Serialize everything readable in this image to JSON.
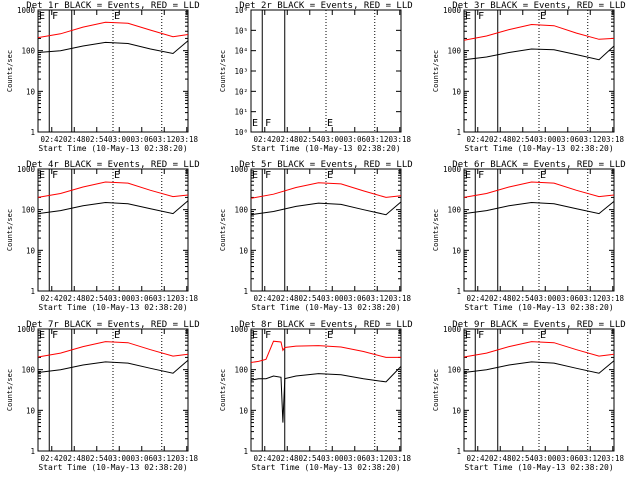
{
  "figure": {
    "background": "#ffffff",
    "event_color": "#000000",
    "lld_color": "#ff0000",
    "layout": "3x3 grid"
  },
  "chart_data": [
    {
      "type": "line",
      "title": "Det 1r BLACK = Events, RED = LLD",
      "xlabel": "Start Time (10-May-13 02:38:20)",
      "ylabel": "Counts/sec",
      "yscale": "log",
      "ylim": [
        1,
        1000
      ],
      "x_tick_labels": [
        "02:42",
        "02:48",
        "02:54",
        "03:00",
        "03:06",
        "03:12",
        "03:18"
      ],
      "y_tick_labels": [
        "1",
        "10",
        "100",
        "1000"
      ],
      "x_minutes": [
        0,
        6,
        12,
        18,
        24,
        30,
        36,
        40
      ],
      "series": [
        {
          "name": "Events",
          "color": "#000000",
          "values": [
            90,
            100,
            130,
            160,
            150,
            110,
            85,
            175
          ]
        },
        {
          "name": "LLD",
          "color": "#ff0000",
          "values": [
            210,
            260,
            380,
            500,
            470,
            320,
            220,
            250
          ]
        }
      ],
      "markers": [
        {
          "label": "E",
          "x_minute": 0
        },
        {
          "label": "F",
          "x_minute": 3.5
        },
        {
          "label": "E",
          "x_minute": 20
        }
      ],
      "vlines_solid": [
        3,
        9
      ],
      "vlines_dotted": [
        20,
        33
      ]
    },
    {
      "type": "line",
      "title": "Det 2r BLACK = Events, RED = LLD",
      "xlabel": "Start Time (10-May-13 02:38:20)",
      "ylabel": "Counts/sec",
      "yscale": "log",
      "ylim": [
        1,
        1000000
      ],
      "x_tick_labels": [
        "02:42",
        "02:48",
        "02:54",
        "03:00",
        "03:06",
        "03:12",
        "03:18"
      ],
      "y_tick_labels": [
        "10⁰",
        "10¹",
        "10²",
        "10³",
        "10⁴",
        "10⁵",
        "10⁶"
      ],
      "series": [],
      "markers": [
        {
          "label": "E",
          "x_minute": 0
        },
        {
          "label": "F",
          "x_minute": 3.5
        },
        {
          "label": "E",
          "x_minute": 20
        }
      ],
      "vlines_solid": [
        3,
        9
      ],
      "vlines_dotted": [
        20,
        33
      ]
    },
    {
      "type": "line",
      "title": "Det 3r BLACK = Events, RED = LLD",
      "xlabel": "Start Time (10-May-13 02:38:20)",
      "ylabel": "Counts/sec",
      "yscale": "log",
      "ylim": [
        1,
        1000
      ],
      "x_tick_labels": [
        "02:42",
        "02:48",
        "02:54",
        "03:00",
        "03:06",
        "03:12",
        "03:18"
      ],
      "y_tick_labels": [
        "1",
        "10",
        "100",
        "1000"
      ],
      "x_minutes": [
        0,
        6,
        12,
        18,
        24,
        30,
        36,
        40
      ],
      "series": [
        {
          "name": "Events",
          "color": "#000000",
          "values": [
            60,
            70,
            90,
            110,
            105,
            80,
            60,
            130
          ]
        },
        {
          "name": "LLD",
          "color": "#ff0000",
          "values": [
            180,
            230,
            330,
            440,
            410,
            270,
            190,
            200
          ]
        }
      ],
      "markers": [
        {
          "label": "E",
          "x_minute": 0
        },
        {
          "label": "F",
          "x_minute": 3.5
        },
        {
          "label": "E",
          "x_minute": 20
        }
      ],
      "vlines_solid": [
        3,
        9
      ],
      "vlines_dotted": [
        20,
        33
      ]
    },
    {
      "type": "line",
      "title": "Det 4r BLACK = Events, RED = LLD",
      "xlabel": "Start Time (10-May-13 02:38:20)",
      "ylabel": "Counts/sec",
      "yscale": "log",
      "ylim": [
        1,
        1000
      ],
      "x_tick_labels": [
        "02:42",
        "02:48",
        "02:54",
        "03:00",
        "03:06",
        "03:12",
        "03:18"
      ],
      "y_tick_labels": [
        "1",
        "10",
        "100",
        "1000"
      ],
      "x_minutes": [
        0,
        6,
        12,
        18,
        24,
        30,
        36,
        40
      ],
      "series": [
        {
          "name": "Events",
          "color": "#000000",
          "values": [
            80,
            95,
            125,
            150,
            140,
            105,
            80,
            165
          ]
        },
        {
          "name": "LLD",
          "color": "#ff0000",
          "values": [
            200,
            250,
            360,
            480,
            450,
            300,
            210,
            230
          ]
        }
      ],
      "markers": [
        {
          "label": "E",
          "x_minute": 0
        },
        {
          "label": "F",
          "x_minute": 3.5
        },
        {
          "label": "E",
          "x_minute": 20
        }
      ],
      "vlines_solid": [
        3,
        9
      ],
      "vlines_dotted": [
        20,
        33
      ]
    },
    {
      "type": "line",
      "title": "Det 5r BLACK = Events, RED = LLD",
      "xlabel": "Start Time (10-May-13 02:38:20)",
      "ylabel": "Counts/sec",
      "yscale": "log",
      "ylim": [
        1,
        1000
      ],
      "x_tick_labels": [
        "02:42",
        "02:48",
        "02:54",
        "03:00",
        "03:06",
        "03:12",
        "03:18"
      ],
      "y_tick_labels": [
        "1",
        "10",
        "100",
        "1000"
      ],
      "x_minutes": [
        0,
        6,
        12,
        18,
        24,
        30,
        36,
        40
      ],
      "series": [
        {
          "name": "Events",
          "color": "#000000",
          "values": [
            75,
            90,
            120,
            145,
            135,
            100,
            75,
            155
          ]
        },
        {
          "name": "LLD",
          "color": "#ff0000",
          "values": [
            190,
            240,
            350,
            460,
            430,
            290,
            200,
            220
          ]
        }
      ],
      "markers": [
        {
          "label": "E",
          "x_minute": 0
        },
        {
          "label": "F",
          "x_minute": 3.5
        },
        {
          "label": "E",
          "x_minute": 20
        }
      ],
      "vlines_solid": [
        3,
        9
      ],
      "vlines_dotted": [
        20,
        33
      ]
    },
    {
      "type": "line",
      "title": "Det 6r BLACK = Events, RED = LLD",
      "xlabel": "Start Time (10-May-13 02:38:20)",
      "ylabel": "Counts/sec",
      "yscale": "log",
      "ylim": [
        1,
        1000
      ],
      "x_tick_labels": [
        "02:42",
        "02:48",
        "02:54",
        "03:00",
        "03:06",
        "03:12",
        "03:18"
      ],
      "y_tick_labels": [
        "1",
        "10",
        "100",
        "1000"
      ],
      "x_minutes": [
        0,
        6,
        12,
        18,
        24,
        30,
        36,
        40
      ],
      "series": [
        {
          "name": "Events",
          "color": "#000000",
          "values": [
            80,
            95,
            125,
            150,
            140,
            105,
            80,
            160
          ]
        },
        {
          "name": "LLD",
          "color": "#ff0000",
          "values": [
            200,
            250,
            360,
            480,
            450,
            300,
            210,
            230
          ]
        }
      ],
      "markers": [
        {
          "label": "E",
          "x_minute": 0
        },
        {
          "label": "F",
          "x_minute": 3.5
        },
        {
          "label": "E",
          "x_minute": 20
        }
      ],
      "vlines_solid": [
        3,
        9
      ],
      "vlines_dotted": [
        20,
        33
      ]
    },
    {
      "type": "line",
      "title": "Det 7r BLACK = Events, RED = LLD",
      "xlabel": "Start Time (10-May-13 02:38:20)",
      "ylabel": "Counts/sec",
      "yscale": "log",
      "ylim": [
        1,
        1000
      ],
      "x_tick_labels": [
        "02:42",
        "02:48",
        "02:54",
        "03:00",
        "03:06",
        "03:12",
        "03:18"
      ],
      "y_tick_labels": [
        "1",
        "10",
        "100",
        "1000"
      ],
      "x_minutes": [
        0,
        6,
        12,
        18,
        24,
        30,
        36,
        40
      ],
      "series": [
        {
          "name": "Events",
          "color": "#000000",
          "values": [
            85,
            100,
            130,
            155,
            145,
            108,
            82,
            170
          ]
        },
        {
          "name": "LLD",
          "color": "#ff0000",
          "values": [
            205,
            255,
            370,
            490,
            460,
            310,
            215,
            240
          ]
        }
      ],
      "markers": [
        {
          "label": "E",
          "x_minute": 0
        },
        {
          "label": "F",
          "x_minute": 3.5
        },
        {
          "label": "E",
          "x_minute": 20
        }
      ],
      "vlines_solid": [
        3,
        9
      ],
      "vlines_dotted": [
        20,
        33
      ]
    },
    {
      "type": "line",
      "title": "Det 8r BLACK = Events, RED = LLD",
      "xlabel": "Start Time (10-May-13 02:38:20)",
      "ylabel": "Counts/sec",
      "yscale": "log",
      "ylim": [
        1,
        1000
      ],
      "x_tick_labels": [
        "02:42",
        "02:48",
        "02:54",
        "03:00",
        "03:06",
        "03:12",
        "03:18"
      ],
      "y_tick_labels": [
        "1",
        "10",
        "100",
        "1000"
      ],
      "x_minutes": [
        0,
        2,
        4,
        6,
        8,
        8.5,
        9,
        12,
        18,
        24,
        30,
        36,
        40
      ],
      "series": [
        {
          "name": "Events",
          "color": "#000000",
          "values": [
            55,
            60,
            60,
            70,
            65,
            5,
            60,
            70,
            80,
            75,
            60,
            50,
            120
          ]
        },
        {
          "name": "LLD",
          "color": "#ff0000",
          "values": [
            150,
            160,
            180,
            500,
            480,
            300,
            350,
            380,
            390,
            360,
            280,
            200,
            200
          ]
        }
      ],
      "markers": [
        {
          "label": "E",
          "x_minute": 0
        },
        {
          "label": "F",
          "x_minute": 3.5
        },
        {
          "label": "E",
          "x_minute": 20
        }
      ],
      "vlines_solid": [
        3,
        9
      ],
      "vlines_dotted": [
        20,
        33
      ]
    },
    {
      "type": "line",
      "title": "Det 9r BLACK = Events, RED = LLD",
      "xlabel": "Start Time (10-May-13 02:38:20)",
      "ylabel": "Counts/sec",
      "yscale": "log",
      "ylim": [
        1,
        1000
      ],
      "x_tick_labels": [
        "02:42",
        "02:48",
        "02:54",
        "03:00",
        "03:06",
        "03:12",
        "03:18"
      ],
      "y_tick_labels": [
        "1",
        "10",
        "100",
        "1000"
      ],
      "x_minutes": [
        0,
        6,
        12,
        18,
        24,
        30,
        36,
        40
      ],
      "series": [
        {
          "name": "Events",
          "color": "#000000",
          "values": [
            85,
            100,
            130,
            155,
            145,
            108,
            82,
            165
          ]
        },
        {
          "name": "LLD",
          "color": "#ff0000",
          "values": [
            205,
            255,
            370,
            490,
            460,
            310,
            215,
            240
          ]
        }
      ],
      "markers": [
        {
          "label": "E",
          "x_minute": 0
        },
        {
          "label": "F",
          "x_minute": 3.5
        },
        {
          "label": "E",
          "x_minute": 20
        }
      ],
      "vlines_solid": [
        3,
        9
      ],
      "vlines_dotted": [
        20,
        33
      ]
    }
  ]
}
